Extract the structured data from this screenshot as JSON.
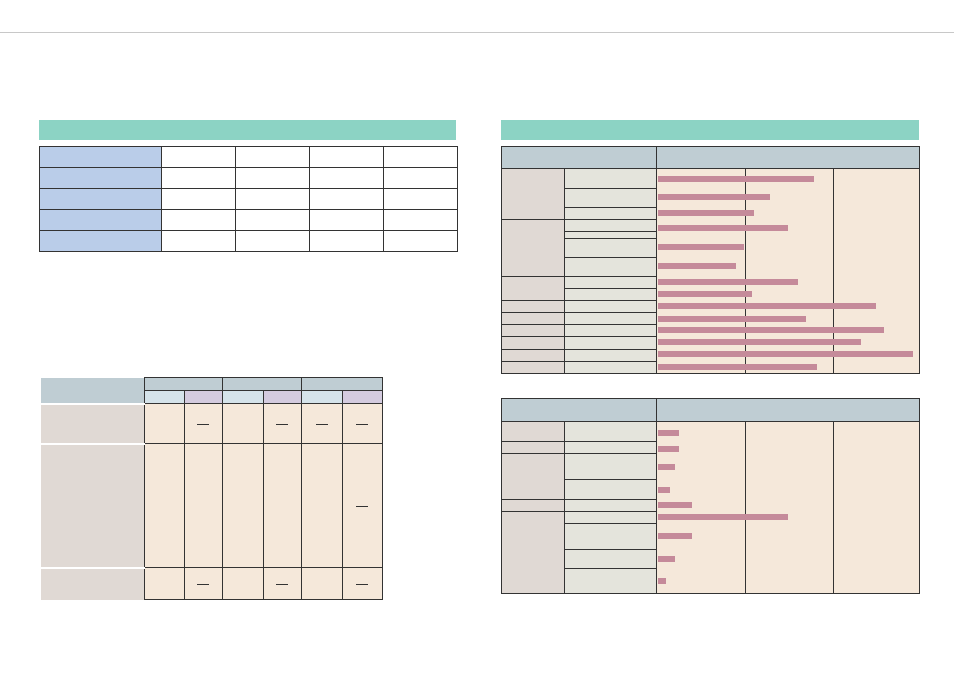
{
  "left_section": {
    "heading": "",
    "table_top": {
      "rows": [
        {
          "label": "",
          "cells": [
            "",
            "",
            "",
            ""
          ]
        },
        {
          "label": "",
          "cells": [
            "",
            "",
            "",
            ""
          ]
        },
        {
          "label": "",
          "cells": [
            "",
            "",
            "",
            ""
          ]
        },
        {
          "label": "",
          "cells": [
            "",
            "",
            "",
            ""
          ]
        },
        {
          "label": "",
          "cells": [
            "",
            "",
            "",
            ""
          ]
        }
      ]
    },
    "table_bottom": {
      "dash_symbol": "—"
    }
  },
  "right_section": {
    "heading": "",
    "chart_top": {
      "bar_fractions": [
        0.6,
        0.43,
        0.37,
        0.5,
        0.33,
        0.3,
        0.54,
        0.36,
        0.84,
        0.57,
        0.87,
        0.78,
        0.98,
        0.61
      ],
      "colors": {
        "bar": "#c58a9a",
        "plot_bg": "#f5e8da",
        "header_bg": "#bfcdd3"
      }
    },
    "chart_bottom": {
      "bar_fractions": [
        0.08,
        0.08,
        0.065,
        0.045,
        0.13,
        0.5,
        0.13,
        0.065,
        0.03
      ],
      "colors": {
        "bar": "#c58a9a",
        "plot_bg": "#f5e8da",
        "header_bg": "#bfcdd3"
      }
    }
  }
}
